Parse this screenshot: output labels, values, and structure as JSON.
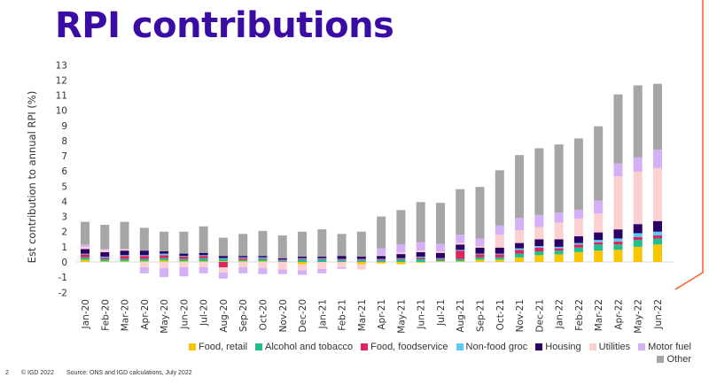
{
  "title": "RPI contributions",
  "footer": {
    "page": "2",
    "copyright": "© IGD 2022",
    "source": "Source: ONS and IGD calculations, July 2022"
  },
  "colors": {
    "title": "#3a0ca3",
    "accent_line": "#ff5a2c"
  },
  "chart_data": {
    "type": "bar",
    "stacked": true,
    "title": "",
    "xlabel": "",
    "ylabel": "Est contribution to annual RPI (%)",
    "ylim": [
      -2,
      13
    ],
    "yticks": [
      -2,
      -1,
      0,
      1,
      2,
      3,
      4,
      5,
      6,
      7,
      8,
      9,
      10,
      11,
      12,
      13
    ],
    "grid": false,
    "legend_position": "bottom",
    "categories": [
      "Jan-20",
      "Feb-20",
      "Mar-20",
      "Apr-20",
      "May-20",
      "Jun-20",
      "Jul-20",
      "Aug-20",
      "Sep-20",
      "Oct-20",
      "Nov-20",
      "Dec-20",
      "Jan-21",
      "Feb-21",
      "Mar-21",
      "Apr-21",
      "May-21",
      "Jun-21",
      "Jul-21",
      "Aug-21",
      "Sep-21",
      "Oct-21",
      "Nov-21",
      "Dec-21",
      "Jan-22",
      "Feb-22",
      "Mar-22",
      "Apr-22",
      "May-22",
      "Jun-22"
    ],
    "series": [
      {
        "name": "Food, retail",
        "color": "#f7c600",
        "values": [
          0.15,
          0.05,
          0.05,
          0.05,
          0.1,
          0.05,
          0.05,
          0.05,
          0.05,
          0.05,
          0,
          -0.15,
          0,
          0,
          -0.15,
          -0.1,
          -0.15,
          -0.05,
          0.05,
          0.05,
          0.15,
          0.15,
          0.3,
          0.45,
          0.5,
          0.65,
          0.75,
          0.8,
          1.0,
          1.15
        ]
      },
      {
        "name": "Alcohol and tobacco",
        "color": "#1fbf8f",
        "values": [
          0.15,
          0.15,
          0.15,
          0.15,
          0.15,
          0.15,
          0.2,
          0.15,
          0.1,
          0.15,
          0.05,
          0.15,
          0.15,
          0.1,
          0.1,
          0.1,
          0.15,
          0.2,
          0.1,
          0.15,
          0.15,
          0.15,
          0.25,
          0.25,
          0.25,
          0.3,
          0.4,
          0.35,
          0.45,
          0.4
        ]
      },
      {
        "name": "Food, foodservice",
        "color": "#e0245e",
        "values": [
          0.2,
          0.1,
          0.2,
          0.2,
          0.2,
          0.15,
          0.15,
          -0.35,
          0.1,
          0.05,
          0.05,
          0.05,
          0.05,
          0.05,
          0.05,
          0.05,
          0.05,
          0.1,
          0.05,
          0.55,
          0.2,
          0.2,
          0.25,
          0.25,
          0.15,
          0.2,
          0.15,
          0.2,
          0.2,
          0.2
        ]
      },
      {
        "name": "Non-food groc",
        "color": "#5bc8f5",
        "values": [
          0.05,
          0.05,
          0.05,
          0.05,
          0.1,
          0.05,
          0.05,
          0.05,
          0.05,
          0.05,
          0.05,
          0.05,
          0.05,
          0.05,
          0.05,
          0.05,
          0.05,
          0.05,
          0.05,
          0.05,
          0.05,
          0.05,
          0.1,
          0.1,
          0.1,
          0.1,
          0.15,
          0.2,
          0.25,
          0.25
        ]
      },
      {
        "name": "Housing",
        "color": "#2b0066",
        "values": [
          0.3,
          0.3,
          0.3,
          0.3,
          0.15,
          0.15,
          0.15,
          0.15,
          0.1,
          0.1,
          0.1,
          0.1,
          0.1,
          0.2,
          0.15,
          0.2,
          0.27,
          0.3,
          0.35,
          0.35,
          0.4,
          0.4,
          0.35,
          0.45,
          0.5,
          0.45,
          0.5,
          0.6,
          0.6,
          0.7
        ]
      },
      {
        "name": "Utilities",
        "color": "#fcd0d0",
        "values": [
          0.15,
          0.15,
          0.1,
          -0.35,
          -0.4,
          -0.35,
          -0.35,
          -0.35,
          -0.35,
          -0.4,
          -0.5,
          -0.4,
          -0.45,
          -0.35,
          -0.35,
          0.05,
          0.1,
          0.1,
          0.1,
          0.1,
          0.1,
          0.85,
          0.85,
          0.8,
          1.1,
          1.15,
          1.25,
          3.5,
          3.45,
          3.5
        ]
      },
      {
        "name": "Motor fuel",
        "color": "#d4b0f7",
        "values": [
          0.15,
          0.05,
          0,
          -0.4,
          -0.6,
          -0.6,
          -0.4,
          -0.4,
          -0.4,
          -0.4,
          -0.3,
          -0.3,
          -0.3,
          -0.1,
          0,
          0.45,
          0.55,
          0.55,
          0.5,
          0.55,
          0.5,
          0.6,
          0.8,
          0.8,
          0.65,
          0.6,
          0.85,
          0.85,
          0.95,
          1.2
        ]
      },
      {
        "name": "Other",
        "color": "#a6a6a6",
        "values": [
          1.5,
          1.6,
          1.8,
          1.5,
          1.3,
          1.45,
          1.75,
          1.2,
          1.45,
          1.65,
          1.5,
          1.65,
          1.8,
          1.45,
          1.65,
          2.1,
          2.25,
          2.65,
          2.7,
          3.0,
          3.4,
          3.65,
          4.15,
          4.4,
          4.5,
          4.7,
          4.9,
          4.55,
          4.75,
          4.35
        ]
      }
    ]
  }
}
